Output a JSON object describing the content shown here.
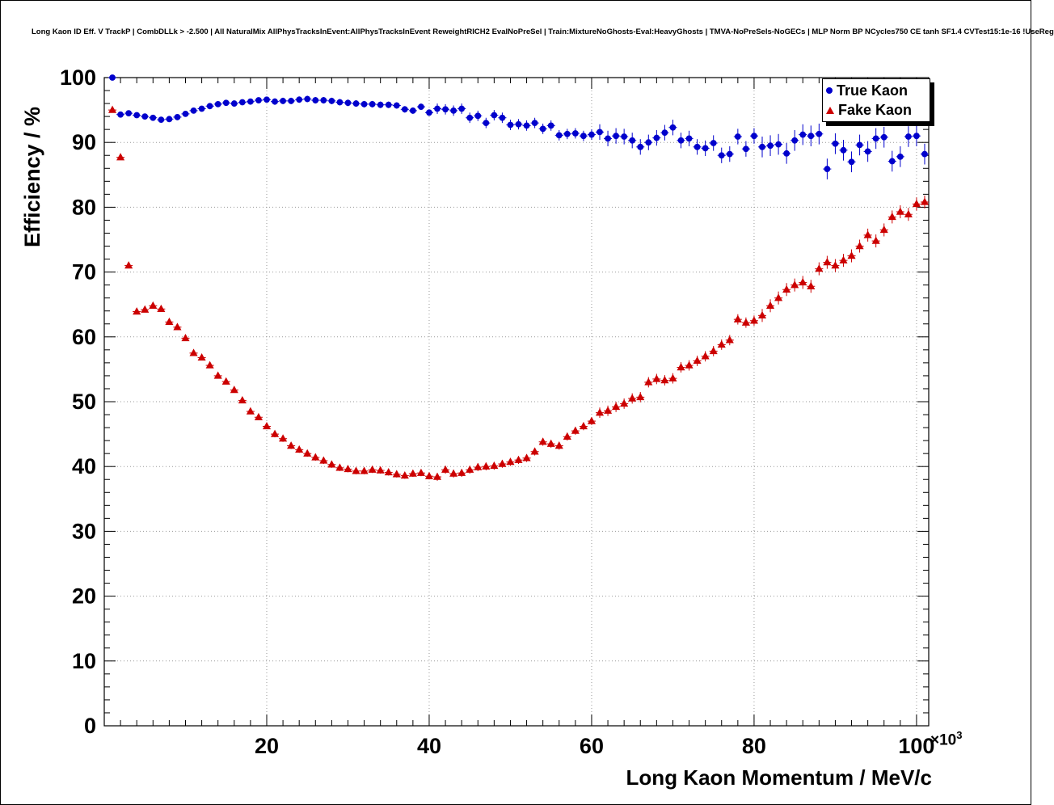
{
  "chart_data": {
    "type": "scatter",
    "title": "Long Kaon ID Eff. V TrackP | CombDLLk > -2.500 | All NaturalMix AllPhysTracksInEvent:AllPhysTracksInEvent ReweightRICH2 EvalNoPreSel | Train:MixtureNoGhosts-Eval:HeavyGhosts | TMVA-NoPreSels-NoGECs | MLP Norm BP NCycles750 CE tanh SF1.4 CVTest15:1e-16 !UseReg",
    "xlabel": "Long Kaon Momentum / MeV/c",
    "ylabel": "Efficiency / %",
    "x_scale_prefix": "×10",
    "x_scale_exponent": "3",
    "x_units_of": 1000,
    "xlim": [
      0,
      101.5
    ],
    "ylim": [
      0,
      100
    ],
    "x_ticks": [
      20,
      40,
      60,
      80,
      100
    ],
    "y_ticks": [
      0,
      10,
      20,
      30,
      40,
      50,
      60,
      70,
      80,
      90,
      100
    ],
    "x_minor_step": 2,
    "y_minor_step": 2,
    "grid": true,
    "grid_color": "#999999",
    "legend": {
      "position": "top-right",
      "entries": [
        {
          "label": "True Kaon",
          "marker": "circle",
          "color": "#0000cc"
        },
        {
          "label": "Fake Kaon",
          "marker": "triangle",
          "color": "#cc0000"
        }
      ]
    },
    "series": [
      {
        "name": "True Kaon",
        "marker": "circle",
        "color": "#0000cc",
        "xerr": 0.5,
        "x": [
          1,
          2,
          3,
          4,
          5,
          6,
          7,
          8,
          9,
          10,
          11,
          12,
          13,
          14,
          15,
          16,
          17,
          18,
          19,
          20,
          21,
          22,
          23,
          24,
          25,
          26,
          27,
          28,
          29,
          30,
          31,
          32,
          33,
          34,
          35,
          36,
          37,
          38,
          39,
          40,
          41,
          42,
          43,
          44,
          45,
          46,
          47,
          48,
          49,
          50,
          51,
          52,
          53,
          54,
          55,
          56,
          57,
          58,
          59,
          60,
          61,
          62,
          63,
          64,
          65,
          66,
          67,
          68,
          69,
          70,
          71,
          72,
          73,
          74,
          75,
          76,
          77,
          78,
          79,
          80,
          81,
          82,
          83,
          84,
          85,
          86,
          87,
          88,
          89,
          90,
          91,
          92,
          93,
          94,
          95,
          96,
          97,
          98,
          99,
          100,
          101
        ],
        "y": [
          100.0,
          94.3,
          94.5,
          94.2,
          94.0,
          93.8,
          93.5,
          93.6,
          93.9,
          94.4,
          94.9,
          95.2,
          95.6,
          95.9,
          96.1,
          96.0,
          96.2,
          96.3,
          96.5,
          96.6,
          96.3,
          96.4,
          96.4,
          96.6,
          96.7,
          96.5,
          96.5,
          96.4,
          96.2,
          96.1,
          96.0,
          95.9,
          95.9,
          95.8,
          95.8,
          95.7,
          95.1,
          94.9,
          95.5,
          94.6,
          95.2,
          95.1,
          94.9,
          95.2,
          93.8,
          94.1,
          93.0,
          94.2,
          93.8,
          92.7,
          92.8,
          92.6,
          93.0,
          92.1,
          92.6,
          91.1,
          91.3,
          91.4,
          91.0,
          91.2,
          91.6,
          90.6,
          91.0,
          90.9,
          90.3,
          89.3,
          90.0,
          90.7,
          91.5,
          92.3,
          90.3,
          90.6,
          89.3,
          89.1,
          89.9,
          88.0,
          88.2,
          90.9,
          89.0,
          91.0,
          89.3,
          89.5,
          89.7,
          88.3,
          90.3,
          91.2,
          91.0,
          91.3,
          85.9,
          89.8,
          88.8,
          87.0,
          89.6,
          88.6,
          90.6,
          90.8,
          87.1,
          87.8,
          90.9,
          91.0,
          88.2
        ],
        "yerr": [
          0.3,
          0.3,
          0.3,
          0.3,
          0.3,
          0.3,
          0.3,
          0.3,
          0.3,
          0.3,
          0.3,
          0.3,
          0.3,
          0.3,
          0.3,
          0.3,
          0.3,
          0.3,
          0.3,
          0.3,
          0.5,
          0.5,
          0.5,
          0.5,
          0.5,
          0.5,
          0.5,
          0.5,
          0.5,
          0.5,
          0.5,
          0.5,
          0.5,
          0.5,
          0.5,
          0.5,
          0.5,
          0.5,
          0.5,
          0.5,
          0.8,
          0.8,
          0.8,
          0.8,
          0.8,
          0.8,
          0.8,
          0.8,
          0.8,
          0.8,
          0.8,
          0.8,
          0.8,
          0.8,
          0.8,
          0.8,
          0.8,
          0.8,
          0.8,
          0.8,
          1.2,
          1.2,
          1.2,
          1.2,
          1.2,
          1.2,
          1.2,
          1.2,
          1.2,
          1.2,
          1.2,
          1.2,
          1.2,
          1.2,
          1.2,
          1.2,
          1.2,
          1.2,
          1.2,
          1.2,
          1.6,
          1.6,
          1.6,
          1.6,
          1.6,
          1.6,
          1.6,
          1.6,
          1.6,
          1.6,
          1.6,
          1.6,
          1.6,
          1.6,
          1.6,
          1.6,
          1.6,
          1.6,
          1.6,
          1.6,
          1.6
        ]
      },
      {
        "name": "Fake Kaon",
        "marker": "triangle",
        "color": "#cc0000",
        "xerr": 0.5,
        "x": [
          1,
          2,
          3,
          4,
          5,
          6,
          7,
          8,
          9,
          10,
          11,
          12,
          13,
          14,
          15,
          16,
          17,
          18,
          19,
          20,
          21,
          22,
          23,
          24,
          25,
          26,
          27,
          28,
          29,
          30,
          31,
          32,
          33,
          34,
          35,
          36,
          37,
          38,
          39,
          40,
          41,
          42,
          43,
          44,
          45,
          46,
          47,
          48,
          49,
          50,
          51,
          52,
          53,
          54,
          55,
          56,
          57,
          58,
          59,
          60,
          61,
          62,
          63,
          64,
          65,
          66,
          67,
          68,
          69,
          70,
          71,
          72,
          73,
          74,
          75,
          76,
          77,
          78,
          79,
          80,
          81,
          82,
          83,
          84,
          85,
          86,
          87,
          88,
          89,
          90,
          91,
          92,
          93,
          94,
          95,
          96,
          97,
          98,
          99,
          100,
          101
        ],
        "y": [
          95.0,
          87.7,
          71.0,
          63.9,
          64.2,
          64.8,
          64.3,
          62.3,
          61.5,
          59.8,
          57.5,
          56.8,
          55.6,
          54.0,
          53.1,
          51.8,
          50.2,
          48.5,
          47.6,
          46.2,
          45.0,
          44.3,
          43.2,
          42.6,
          42.0,
          41.4,
          40.9,
          40.3,
          39.8,
          39.6,
          39.3,
          39.3,
          39.5,
          39.4,
          39.1,
          38.8,
          38.6,
          38.9,
          39.0,
          38.5,
          38.4,
          39.5,
          38.9,
          39.0,
          39.5,
          39.9,
          40.0,
          40.1,
          40.4,
          40.7,
          41.0,
          41.3,
          42.3,
          43.8,
          43.5,
          43.2,
          44.6,
          45.5,
          46.2,
          47.0,
          48.3,
          48.6,
          49.2,
          49.7,
          50.5,
          50.7,
          53.0,
          53.5,
          53.3,
          53.6,
          55.3,
          55.6,
          56.3,
          57.0,
          57.8,
          58.8,
          59.5,
          62.7,
          62.2,
          62.5,
          63.3,
          64.8,
          66.0,
          67.3,
          68.0,
          68.4,
          67.8,
          70.5,
          71.5,
          71.0,
          71.8,
          72.5,
          74.0,
          75.7,
          74.8,
          76.5,
          78.5,
          79.3,
          78.9,
          80.5,
          80.8
        ],
        "yerr": [
          0.4,
          0.4,
          0.4,
          0.4,
          0.4,
          0.4,
          0.4,
          0.4,
          0.4,
          0.4,
          0.4,
          0.4,
          0.4,
          0.4,
          0.4,
          0.4,
          0.4,
          0.4,
          0.4,
          0.4,
          0.5,
          0.5,
          0.5,
          0.5,
          0.5,
          0.5,
          0.5,
          0.5,
          0.5,
          0.5,
          0.5,
          0.5,
          0.5,
          0.5,
          0.5,
          0.5,
          0.5,
          0.5,
          0.5,
          0.5,
          0.6,
          0.6,
          0.6,
          0.6,
          0.6,
          0.6,
          0.6,
          0.6,
          0.6,
          0.6,
          0.6,
          0.6,
          0.6,
          0.6,
          0.6,
          0.6,
          0.6,
          0.6,
          0.6,
          0.6,
          0.8,
          0.8,
          0.8,
          0.8,
          0.8,
          0.8,
          0.8,
          0.8,
          0.8,
          0.8,
          0.8,
          0.8,
          0.8,
          0.8,
          0.8,
          0.8,
          0.8,
          0.8,
          0.8,
          0.8,
          1.0,
          1.0,
          1.0,
          1.0,
          1.0,
          1.0,
          1.0,
          1.0,
          1.0,
          1.0,
          1.0,
          1.0,
          1.0,
          1.0,
          1.0,
          1.0,
          1.0,
          1.0,
          1.0,
          1.0,
          1.0
        ]
      }
    ]
  }
}
